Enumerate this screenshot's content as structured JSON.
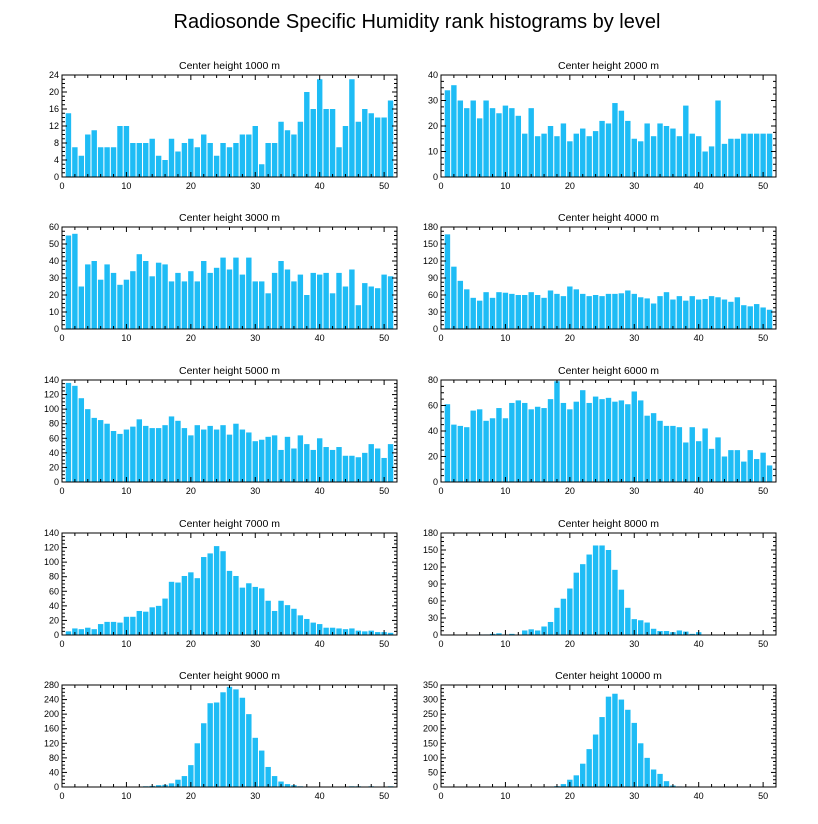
{
  "title": "Radiosonde Specific Humidity rank histograms by level",
  "colors": {
    "bar": "#1ebcf5",
    "axis": "#000000",
    "background": "#ffffff"
  },
  "chart_data": [
    {
      "type": "bar",
      "title": "Center height 1000 m",
      "xlim": [
        0,
        52
      ],
      "ylim": [
        0,
        24
      ],
      "xticks": [
        0,
        10,
        20,
        30,
        40,
        50
      ],
      "yticks": [
        0,
        4,
        8,
        12,
        16,
        20,
        24
      ],
      "x": [
        1,
        2,
        3,
        4,
        5,
        6,
        7,
        8,
        9,
        10,
        11,
        12,
        13,
        14,
        15,
        16,
        17,
        18,
        19,
        20,
        21,
        22,
        23,
        24,
        25,
        26,
        27,
        28,
        29,
        30,
        31,
        32,
        33,
        34,
        35,
        36,
        37,
        38,
        39,
        40,
        41,
        42,
        43,
        44,
        45,
        46,
        47,
        48,
        49,
        50,
        51
      ],
      "values": [
        15,
        7,
        5,
        10,
        11,
        7,
        7,
        7,
        12,
        12,
        8,
        8,
        8,
        9,
        5,
        4,
        9,
        6,
        8,
        9,
        7,
        10,
        8,
        5,
        8,
        7,
        8,
        10,
        10,
        12,
        3,
        8,
        8,
        13,
        11,
        10,
        13,
        20,
        16,
        23,
        16,
        16,
        7,
        12,
        23,
        13,
        16,
        15,
        14,
        14,
        18
      ]
    },
    {
      "type": "bar",
      "title": "Center height 2000 m",
      "xlim": [
        0,
        52
      ],
      "ylim": [
        0,
        40
      ],
      "xticks": [
        0,
        10,
        20,
        30,
        40,
        50
      ],
      "yticks": [
        0,
        10,
        20,
        30,
        40
      ],
      "x": [
        1,
        2,
        3,
        4,
        5,
        6,
        7,
        8,
        9,
        10,
        11,
        12,
        13,
        14,
        15,
        16,
        17,
        18,
        19,
        20,
        21,
        22,
        23,
        24,
        25,
        26,
        27,
        28,
        29,
        30,
        31,
        32,
        33,
        34,
        35,
        36,
        37,
        38,
        39,
        40,
        41,
        42,
        43,
        44,
        45,
        46,
        47,
        48,
        49,
        50,
        51
      ],
      "values": [
        34,
        36,
        30,
        27,
        30,
        23,
        30,
        27,
        25,
        28,
        27,
        24,
        17,
        27,
        16,
        17,
        20,
        16,
        21,
        14,
        17,
        19,
        16,
        18,
        22,
        21,
        29,
        26,
        22,
        15,
        14,
        21,
        16,
        21,
        20,
        19,
        16,
        28,
        17,
        16,
        10,
        12,
        30,
        13,
        15,
        15,
        17,
        17,
        17,
        17,
        17
      ]
    },
    {
      "type": "bar",
      "title": "Center height 3000 m",
      "xlim": [
        0,
        52
      ],
      "ylim": [
        0,
        60
      ],
      "xticks": [
        0,
        10,
        20,
        30,
        40,
        50
      ],
      "yticks": [
        0,
        10,
        20,
        30,
        40,
        50,
        60
      ],
      "x": [
        1,
        2,
        3,
        4,
        5,
        6,
        7,
        8,
        9,
        10,
        11,
        12,
        13,
        14,
        15,
        16,
        17,
        18,
        19,
        20,
        21,
        22,
        23,
        24,
        25,
        26,
        27,
        28,
        29,
        30,
        31,
        32,
        33,
        34,
        35,
        36,
        37,
        38,
        39,
        40,
        41,
        42,
        43,
        44,
        45,
        46,
        47,
        48,
        49,
        50,
        51
      ],
      "values": [
        55,
        56,
        25,
        38,
        40,
        29,
        38,
        33,
        26,
        29,
        34,
        44,
        40,
        31,
        39,
        38,
        28,
        33,
        28,
        34,
        28,
        40,
        33,
        36,
        42,
        35,
        42,
        32,
        42,
        28,
        28,
        21,
        33,
        40,
        35,
        28,
        32,
        20,
        33,
        32,
        33,
        21,
        33,
        25,
        35,
        14,
        27,
        25,
        24,
        32,
        31
      ]
    },
    {
      "type": "bar",
      "title": "Center height 4000 m",
      "xlim": [
        0,
        52
      ],
      "ylim": [
        0,
        180
      ],
      "xticks": [
        0,
        10,
        20,
        30,
        40,
        50
      ],
      "yticks": [
        0,
        30,
        60,
        90,
        120,
        150,
        180
      ],
      "x": [
        1,
        2,
        3,
        4,
        5,
        6,
        7,
        8,
        9,
        10,
        11,
        12,
        13,
        14,
        15,
        16,
        17,
        18,
        19,
        20,
        21,
        22,
        23,
        24,
        25,
        26,
        27,
        28,
        29,
        30,
        31,
        32,
        33,
        34,
        35,
        36,
        37,
        38,
        39,
        40,
        41,
        42,
        43,
        44,
        45,
        46,
        47,
        48,
        49,
        50,
        51
      ],
      "values": [
        167,
        110,
        85,
        70,
        55,
        50,
        65,
        55,
        65,
        64,
        62,
        60,
        60,
        65,
        60,
        55,
        68,
        62,
        58,
        75,
        70,
        62,
        58,
        60,
        58,
        62,
        62,
        63,
        68,
        62,
        56,
        54,
        45,
        58,
        65,
        52,
        58,
        50,
        58,
        52,
        53,
        58,
        56,
        52,
        48,
        56,
        42,
        40,
        44,
        38,
        34
      ]
    },
    {
      "type": "bar",
      "title": "Center height 5000 m",
      "xlim": [
        0,
        52
      ],
      "ylim": [
        0,
        140
      ],
      "xticks": [
        0,
        10,
        20,
        30,
        40,
        50
      ],
      "yticks": [
        0,
        20,
        40,
        60,
        80,
        100,
        120,
        140
      ],
      "x": [
        1,
        2,
        3,
        4,
        5,
        6,
        7,
        8,
        9,
        10,
        11,
        12,
        13,
        14,
        15,
        16,
        17,
        18,
        19,
        20,
        21,
        22,
        23,
        24,
        25,
        26,
        27,
        28,
        29,
        30,
        31,
        32,
        33,
        34,
        35,
        36,
        37,
        38,
        39,
        40,
        41,
        42,
        43,
        44,
        45,
        46,
        47,
        48,
        49,
        50,
        51
      ],
      "values": [
        136,
        132,
        115,
        100,
        88,
        85,
        80,
        70,
        66,
        72,
        76,
        86,
        77,
        74,
        74,
        78,
        90,
        84,
        74,
        64,
        78,
        72,
        77,
        72,
        78,
        65,
        80,
        72,
        68,
        56,
        58,
        62,
        64,
        44,
        62,
        46,
        64,
        52,
        44,
        60,
        48,
        44,
        48,
        36,
        36,
        34,
        40,
        52,
        46,
        33,
        52
      ]
    },
    {
      "type": "bar",
      "title": "Center height 6000 m",
      "xlim": [
        0,
        52
      ],
      "ylim": [
        0,
        80
      ],
      "xticks": [
        0,
        10,
        20,
        30,
        40,
        50
      ],
      "yticks": [
        0,
        20,
        40,
        60,
        80
      ],
      "x": [
        1,
        2,
        3,
        4,
        5,
        6,
        7,
        8,
        9,
        10,
        11,
        12,
        13,
        14,
        15,
        16,
        17,
        18,
        19,
        20,
        21,
        22,
        23,
        24,
        25,
        26,
        27,
        28,
        29,
        30,
        31,
        32,
        33,
        34,
        35,
        36,
        37,
        38,
        39,
        40,
        41,
        42,
        43,
        44,
        45,
        46,
        47,
        48,
        49,
        50,
        51
      ],
      "values": [
        61,
        45,
        44,
        43,
        56,
        57,
        48,
        50,
        58,
        50,
        62,
        64,
        62,
        57,
        59,
        58,
        65,
        79,
        62,
        57,
        63,
        72,
        62,
        67,
        65,
        66,
        63,
        64,
        61,
        71,
        64,
        52,
        54,
        48,
        44,
        44,
        43,
        31,
        43,
        32,
        42,
        26,
        35,
        20,
        25,
        25,
        16,
        25,
        18,
        23,
        13
      ]
    },
    {
      "type": "bar",
      "title": "Center height 7000 m",
      "xlim": [
        0,
        52
      ],
      "ylim": [
        0,
        140
      ],
      "xticks": [
        0,
        10,
        20,
        30,
        40,
        50
      ],
      "yticks": [
        0,
        20,
        40,
        60,
        80,
        100,
        120,
        140
      ],
      "x": [
        1,
        2,
        3,
        4,
        5,
        6,
        7,
        8,
        9,
        10,
        11,
        12,
        13,
        14,
        15,
        16,
        17,
        18,
        19,
        20,
        21,
        22,
        23,
        24,
        25,
        26,
        27,
        28,
        29,
        30,
        31,
        32,
        33,
        34,
        35,
        36,
        37,
        38,
        39,
        40,
        41,
        42,
        43,
        44,
        45,
        46,
        47,
        48,
        49,
        50,
        51
      ],
      "values": [
        5,
        9,
        8,
        10,
        8,
        15,
        18,
        18,
        17,
        25,
        25,
        33,
        32,
        38,
        40,
        50,
        73,
        72,
        81,
        86,
        78,
        107,
        112,
        122,
        115,
        88,
        81,
        65,
        71,
        66,
        64,
        47,
        33,
        47,
        41,
        36,
        27,
        22,
        17,
        15,
        10,
        10,
        9,
        8,
        9,
        6,
        5,
        6,
        4,
        4,
        3
      ]
    },
    {
      "type": "bar",
      "title": "Center height 8000 m",
      "xlim": [
        0,
        52
      ],
      "ylim": [
        0,
        180
      ],
      "xticks": [
        0,
        10,
        20,
        30,
        40,
        50
      ],
      "yticks": [
        0,
        30,
        60,
        90,
        120,
        150,
        180
      ],
      "x": [
        1,
        2,
        3,
        4,
        5,
        6,
        7,
        8,
        9,
        10,
        11,
        12,
        13,
        14,
        15,
        16,
        17,
        18,
        19,
        20,
        21,
        22,
        23,
        24,
        25,
        26,
        27,
        28,
        29,
        30,
        31,
        32,
        33,
        34,
        35,
        36,
        37,
        38,
        39,
        40,
        41,
        42,
        43,
        44,
        45,
        46,
        47,
        48,
        49,
        50,
        51
      ],
      "values": [
        0,
        0,
        0,
        0,
        0,
        1,
        1,
        2,
        3,
        1,
        2,
        0,
        8,
        10,
        8,
        15,
        23,
        48,
        64,
        82,
        110,
        125,
        142,
        158,
        158,
        150,
        115,
        80,
        48,
        28,
        26,
        22,
        11,
        7,
        7,
        5,
        8,
        6,
        2,
        5,
        0,
        0,
        0,
        0,
        0,
        0,
        0,
        0,
        0,
        0,
        0
      ]
    },
    {
      "type": "bar",
      "title": "Center height 9000 m",
      "xlim": [
        0,
        52
      ],
      "ylim": [
        0,
        280
      ],
      "xticks": [
        0,
        10,
        20,
        30,
        40,
        50
      ],
      "yticks": [
        0,
        40,
        80,
        120,
        160,
        200,
        240,
        280
      ],
      "x": [
        1,
        2,
        3,
        4,
        5,
        6,
        7,
        8,
        9,
        10,
        11,
        12,
        13,
        14,
        15,
        16,
        17,
        18,
        19,
        20,
        21,
        22,
        23,
        24,
        25,
        26,
        27,
        28,
        29,
        30,
        31,
        32,
        33,
        34,
        35,
        36,
        37,
        38,
        39,
        40,
        41,
        42,
        43,
        44,
        45,
        46,
        47,
        48,
        49,
        50,
        51
      ],
      "values": [
        0,
        0,
        0,
        0,
        0,
        0,
        0,
        0,
        0,
        0,
        0,
        0,
        2,
        3,
        5,
        6,
        10,
        20,
        30,
        60,
        120,
        175,
        230,
        232,
        260,
        275,
        268,
        245,
        200,
        135,
        100,
        55,
        30,
        15,
        8,
        5,
        2,
        1,
        0,
        0,
        0,
        0,
        0,
        0,
        2,
        2,
        0,
        2,
        1,
        0,
        2
      ]
    },
    {
      "type": "bar",
      "title": "Center height 10000 m",
      "xlim": [
        0,
        52
      ],
      "ylim": [
        0,
        350
      ],
      "xticks": [
        0,
        10,
        20,
        30,
        40,
        50
      ],
      "yticks": [
        0,
        50,
        100,
        150,
        200,
        250,
        300,
        350
      ],
      "x": [
        1,
        2,
        3,
        4,
        5,
        6,
        7,
        8,
        9,
        10,
        11,
        12,
        13,
        14,
        15,
        16,
        17,
        18,
        19,
        20,
        21,
        22,
        23,
        24,
        25,
        26,
        27,
        28,
        29,
        30,
        31,
        32,
        33,
        34,
        35,
        36,
        37,
        38,
        39,
        40,
        41,
        42,
        43,
        44,
        45,
        46,
        47,
        48,
        49,
        50,
        51
      ],
      "values": [
        0,
        0,
        0,
        0,
        0,
        0,
        0,
        0,
        0,
        0,
        0,
        0,
        0,
        0,
        0,
        0,
        0,
        3,
        10,
        25,
        40,
        80,
        130,
        180,
        240,
        310,
        320,
        300,
        265,
        220,
        150,
        100,
        60,
        45,
        20,
        5,
        2,
        0,
        0,
        0,
        0,
        0,
        0,
        0,
        0,
        0,
        0,
        0,
        0,
        0,
        0
      ]
    }
  ]
}
